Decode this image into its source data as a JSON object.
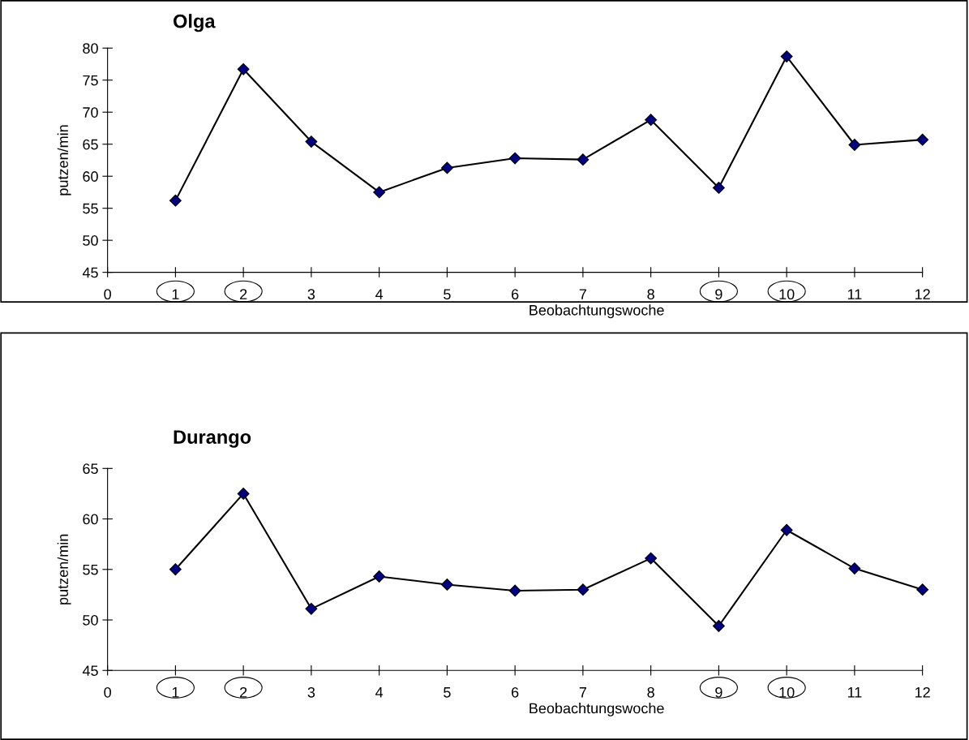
{
  "chart_data": [
    {
      "type": "line",
      "title": "Olga",
      "xlabel": "Beobachtungswoche",
      "ylabel": "putzen/min",
      "x": [
        1,
        2,
        3,
        4,
        5,
        6,
        7,
        8,
        9,
        10,
        11,
        12
      ],
      "series": [
        {
          "color": "#000080",
          "values": [
            56.2,
            76.7,
            65.4,
            57.5,
            61.3,
            62.8,
            62.6,
            68.8,
            58.2,
            78.7,
            64.9,
            65.7
          ]
        }
      ],
      "xlim": [
        0,
        12
      ],
      "xticks": [
        0,
        1,
        2,
        3,
        4,
        5,
        6,
        7,
        8,
        9,
        10,
        11,
        12
      ],
      "ylim": [
        45,
        80
      ],
      "yticks": [
        45,
        50,
        55,
        60,
        65,
        70,
        75,
        80
      ],
      "marker": "diamond",
      "line_style": "solid",
      "grid": false,
      "legend": false
    },
    {
      "type": "line",
      "title": "Durango",
      "xlabel": "Beobachtungswoche",
      "ylabel": "putzen/min",
      "x": [
        1,
        2,
        3,
        4,
        5,
        6,
        7,
        8,
        9,
        10,
        11,
        12
      ],
      "series": [
        {
          "color": "#000080",
          "values": [
            55.0,
            62.5,
            51.1,
            54.3,
            53.5,
            52.9,
            53.0,
            56.1,
            49.4,
            58.9,
            55.1,
            53.0
          ]
        }
      ],
      "xlim": [
        0,
        12
      ],
      "xticks": [
        0,
        1,
        2,
        3,
        4,
        5,
        6,
        7,
        8,
        9,
        10,
        11,
        12
      ],
      "ylim": [
        45,
        65
      ],
      "yticks": [
        45,
        50,
        55,
        60,
        65
      ],
      "marker": "diamond",
      "line_style": "solid",
      "grid": false,
      "legend": false
    }
  ]
}
